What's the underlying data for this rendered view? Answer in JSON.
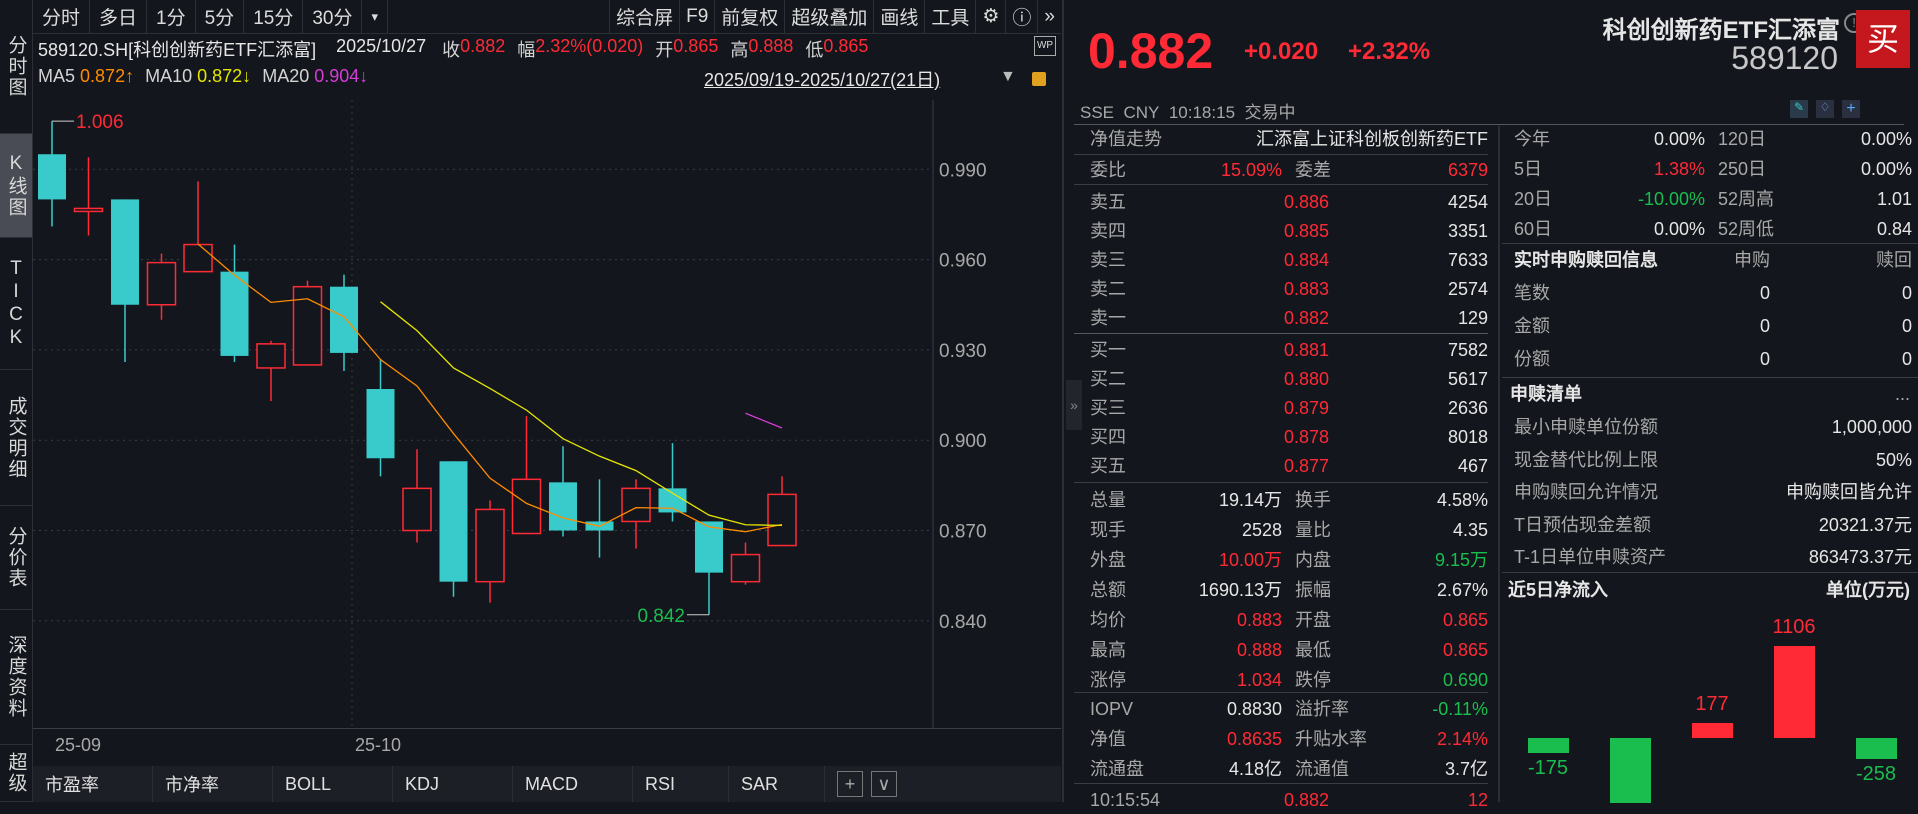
{
  "sidebar": {
    "tabs": [
      "分时图",
      "K线图",
      "TICK",
      "成交明细",
      "分价表",
      "深度资料",
      "超级"
    ],
    "selected": "K线图"
  },
  "toolbar": {
    "left": [
      "分时",
      "多日",
      "1分",
      "5分",
      "15分",
      "30分"
    ],
    "more": "▾",
    "right": [
      "综合屏",
      "F9",
      "前复权",
      "超级叠加",
      "画线",
      "工具"
    ],
    "icons": [
      "gear-icon",
      "help-icon",
      "expand-icon"
    ]
  },
  "info": {
    "symbol": "589120.SH[科创创新药ETF汇添富]",
    "date": "2025/10/27",
    "close_label": "收",
    "close": "0.882",
    "range_label": "幅",
    "range": "2.32%(0.020)",
    "open_label": "开",
    "open": "0.865",
    "high_label": "高",
    "high": "0.888",
    "low_label": "低",
    "low": "0.865",
    "ma5_label": "MA5",
    "ma5": "0.872↑",
    "ma10_label": "MA10",
    "ma10": "0.872↓",
    "ma20_label": "MA20",
    "ma20": "0.904↓",
    "period": "2025/09/19-2025/10/27(21日)"
  },
  "colors": {
    "up": "#ff2a35",
    "down": "#39cbcb",
    "green": "#19be4f",
    "ma5": "#ff8c00",
    "ma10": "#e6e600",
    "ma20": "#d63cd6"
  },
  "chart_data": {
    "type": "candlestick",
    "ylim": [
      0.84,
      1.006
    ],
    "yticks": [
      "0.990",
      "0.960",
      "0.930",
      "0.900",
      "0.870",
      "0.840"
    ],
    "xticks": [
      "25-09",
      "25-10"
    ],
    "max_label": "1.006",
    "min_label": "0.842",
    "candles": [
      {
        "o": 0.995,
        "h": 1.006,
        "l": 0.971,
        "c": 0.98
      },
      {
        "o": 0.977,
        "h": 0.994,
        "l": 0.968,
        "c": 0.977
      },
      {
        "o": 0.98,
        "h": 0.98,
        "l": 0.926,
        "c": 0.945
      },
      {
        "o": 0.945,
        "h": 0.962,
        "l": 0.94,
        "c": 0.959
      },
      {
        "o": 0.956,
        "h": 0.986,
        "l": 0.956,
        "c": 0.965
      },
      {
        "o": 0.956,
        "h": 0.965,
        "l": 0.926,
        "c": 0.928
      },
      {
        "o": 0.924,
        "h": 0.933,
        "l": 0.913,
        "c": 0.932
      },
      {
        "o": 0.925,
        "h": 0.953,
        "l": 0.925,
        "c": 0.951
      },
      {
        "o": 0.951,
        "h": 0.955,
        "l": 0.923,
        "c": 0.929
      },
      {
        "o": 0.917,
        "h": 0.927,
        "l": 0.888,
        "c": 0.894
      },
      {
        "o": 0.87,
        "h": 0.897,
        "l": 0.866,
        "c": 0.884
      },
      {
        "o": 0.893,
        "h": 0.893,
        "l": 0.848,
        "c": 0.853
      },
      {
        "o": 0.853,
        "h": 0.88,
        "l": 0.846,
        "c": 0.877
      },
      {
        "o": 0.869,
        "h": 0.908,
        "l": 0.869,
        "c": 0.887
      },
      {
        "o": 0.886,
        "h": 0.898,
        "l": 0.868,
        "c": 0.87
      },
      {
        "o": 0.873,
        "h": 0.887,
        "l": 0.861,
        "c": 0.87
      },
      {
        "o": 0.873,
        "h": 0.887,
        "l": 0.864,
        "c": 0.884
      },
      {
        "o": 0.884,
        "h": 0.899,
        "l": 0.873,
        "c": 0.876
      },
      {
        "o": 0.873,
        "h": 0.873,
        "l": 0.842,
        "c": 0.856
      },
      {
        "o": 0.853,
        "h": 0.866,
        "l": 0.852,
        "c": 0.862
      },
      {
        "o": 0.865,
        "h": 0.888,
        "l": 0.865,
        "c": 0.882
      }
    ]
  },
  "bottom_tabs": [
    "市盈率",
    "市净率",
    "BOLL",
    "KDJ",
    "MACD",
    "RSI",
    "SAR"
  ],
  "bottom_add": "+",
  "bottom_more": "∨",
  "quote": {
    "price": "0.882",
    "change": "+0.020",
    "pct": "+2.32%",
    "name": "科创创新药ETF汇添富",
    "code": "589120",
    "buy": "买",
    "exchange": "SSE",
    "currency": "CNY",
    "time": "10:18:15",
    "status": "交易中"
  },
  "book": {
    "nav_label": "净值走势",
    "fund_name": "汇添富上证科创板创新药ETF",
    "wb_label": "委比",
    "wb": "15.09%",
    "wc_label": "委差",
    "wc": "6379",
    "asks": [
      {
        "l": "卖五",
        "p": "0.886",
        "v": "4254"
      },
      {
        "l": "卖四",
        "p": "0.885",
        "v": "3351"
      },
      {
        "l": "卖三",
        "p": "0.884",
        "v": "7633"
      },
      {
        "l": "卖二",
        "p": "0.883",
        "v": "2574"
      },
      {
        "l": "卖一",
        "p": "0.882",
        "v": "129"
      }
    ],
    "bids": [
      {
        "l": "买一",
        "p": "0.881",
        "v": "7582"
      },
      {
        "l": "买二",
        "p": "0.880",
        "v": "5617"
      },
      {
        "l": "买三",
        "p": "0.879",
        "v": "2636"
      },
      {
        "l": "买四",
        "p": "0.878",
        "v": "8018"
      },
      {
        "l": "买五",
        "p": "0.877",
        "v": "467"
      }
    ]
  },
  "stats": [
    {
      "l1": "总量",
      "v1": "19.14万",
      "c1": "w",
      "l2": "换手",
      "v2": "4.58%",
      "c2": "w"
    },
    {
      "l1": "现手",
      "v1": "2528",
      "c1": "w",
      "l2": "量比",
      "v2": "4.35",
      "c2": "w"
    },
    {
      "l1": "外盘",
      "v1": "10.00万",
      "c1": "r",
      "l2": "内盘",
      "v2": "9.15万",
      "c2": "g"
    },
    {
      "l1": "总额",
      "v1": "1690.13万",
      "c1": "w",
      "l2": "振幅",
      "v2": "2.67%",
      "c2": "w"
    },
    {
      "l1": "均价",
      "v1": "0.883",
      "c1": "r",
      "l2": "开盘",
      "v2": "0.865",
      "c2": "r"
    },
    {
      "l1": "最高",
      "v1": "0.888",
      "c1": "r",
      "l2": "最低",
      "v2": "0.865",
      "c2": "r"
    },
    {
      "l1": "涨停",
      "v1": "1.034",
      "c1": "r",
      "l2": "跌停",
      "v2": "0.690",
      "c2": "g"
    }
  ],
  "etf": [
    {
      "l1": "IOPV",
      "v1": "0.8830",
      "c1": "w",
      "l2": "溢折率",
      "v2": "-0.11%",
      "c2": "g"
    },
    {
      "l1": "净值",
      "v1": "0.8635",
      "c1": "r",
      "l2": "升贴水率",
      "v2": "2.14%",
      "c2": "r"
    },
    {
      "l1": "流通盘",
      "v1": "4.18亿",
      "c1": "w",
      "l2": "流通值",
      "v2": "3.7亿",
      "c2": "w"
    }
  ],
  "tick": {
    "time": "10:15:54",
    "price": "0.882",
    "vol": "12"
  },
  "perf": [
    {
      "l1": "今年",
      "v1": "0.00%",
      "c1": "w",
      "l2": "120日",
      "v2": "0.00%",
      "c2": "w"
    },
    {
      "l1": "5日",
      "v1": "1.38%",
      "c1": "r",
      "l2": "250日",
      "v2": "0.00%",
      "c2": "w"
    },
    {
      "l1": "20日",
      "v1": "-10.00%",
      "c1": "g",
      "l2": "52周高",
      "v2": "1.01",
      "c2": "w"
    },
    {
      "l1": "60日",
      "v1": "0.00%",
      "c1": "w",
      "l2": "52周低",
      "v2": "0.84",
      "c2": "w"
    }
  ],
  "realtime": {
    "title": "实时申购赎回信息",
    "col1": "申购",
    "col2": "赎回",
    "rows": [
      {
        "l": "笔数",
        "a": "0",
        "b": "0"
      },
      {
        "l": "金额",
        "a": "0",
        "b": "0"
      },
      {
        "l": "份额",
        "a": "0",
        "b": "0"
      }
    ]
  },
  "list": {
    "title": "申赎清单",
    "more": "...",
    "rows": [
      {
        "l": "最小申赎单位份额",
        "v": "1,000,000"
      },
      {
        "l": "现金替代比例上限",
        "v": "50%"
      },
      {
        "l": "申购赎回允许情况",
        "v": "申购赎回皆允许"
      },
      {
        "l": "T日预估现金差额",
        "v": "20321.37元"
      },
      {
        "l": "T-1日单位申赎资产",
        "v": "863473.37元"
      }
    ]
  },
  "flow": {
    "title": "近5日净流入",
    "unit": "单位(万元)",
    "values": [
      -175,
      -780,
      177,
      1106,
      -258
    ],
    "labels": [
      "-175",
      "",
      "177",
      "1106",
      "-258"
    ]
  }
}
